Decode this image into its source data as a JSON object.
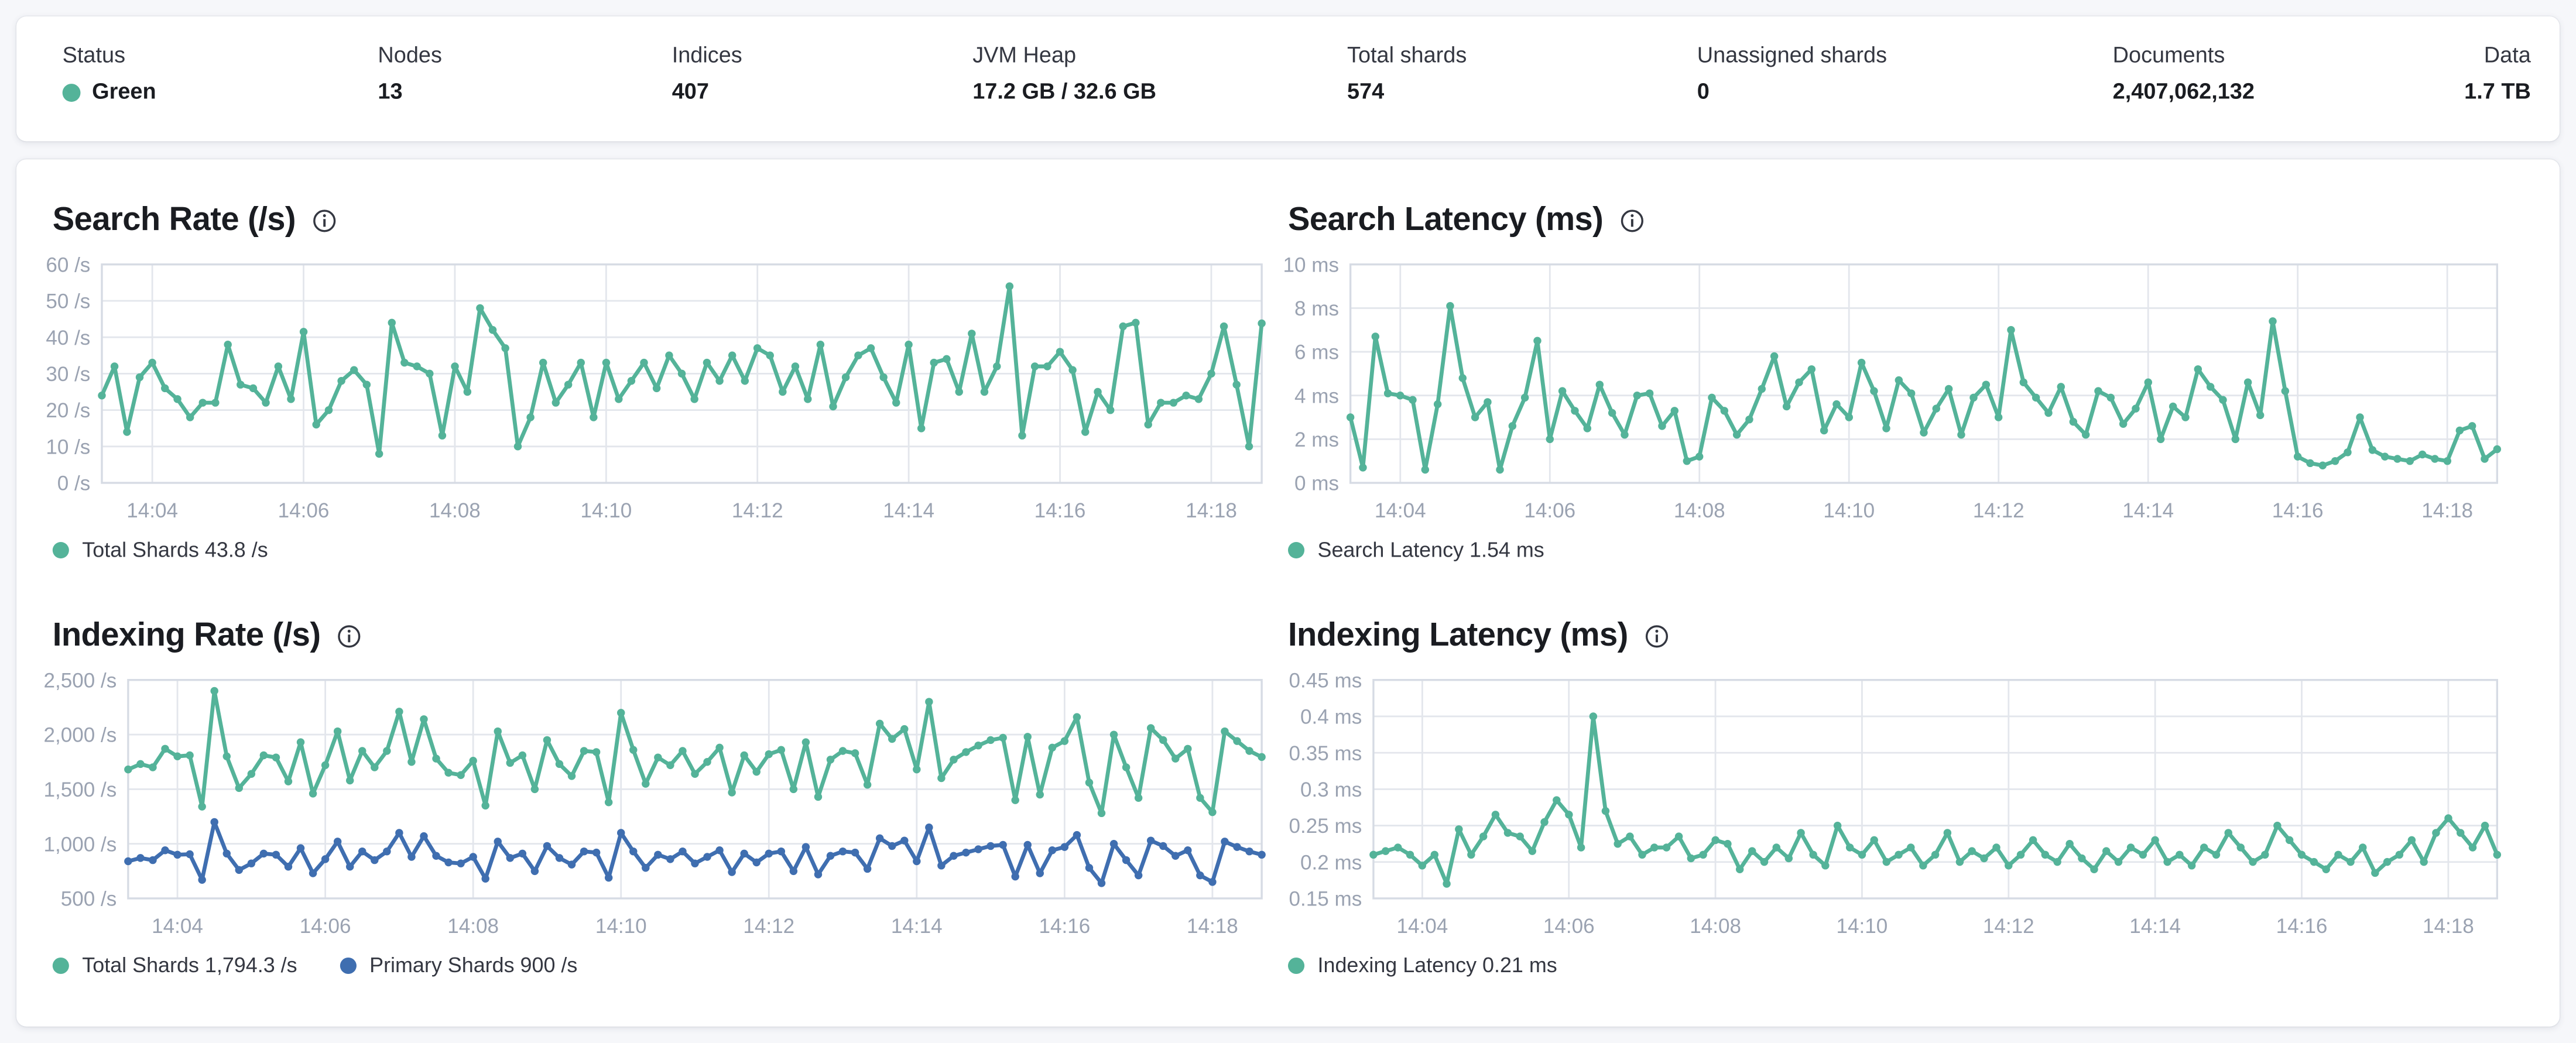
{
  "colors": {
    "health_green": "#54b399",
    "teal_series": "#54b399",
    "blue_series": "#3f6eb0",
    "grid": "#e3e6ec",
    "plot_border": "#d6dbe4",
    "axis_text": "#9aa2b1"
  },
  "stats": [
    {
      "label": "Status",
      "value": "Green"
    },
    {
      "label": "Nodes",
      "value": "13"
    },
    {
      "label": "Indices",
      "value": "407"
    },
    {
      "label": "JVM Heap",
      "value": "17.2 GB / 32.6 GB"
    },
    {
      "label": "Total shards",
      "value": "574"
    },
    {
      "label": "Unassigned shards",
      "value": "0"
    },
    {
      "label": "Documents",
      "value": "2,407,062,132"
    },
    {
      "label": "Data",
      "value": "1.7 TB"
    }
  ],
  "chart_data": [
    {
      "type": "line",
      "title": "Search Rate (/s)",
      "ylim": [
        0,
        60
      ],
      "label_width": 30,
      "y_ticks": [
        {
          "v": 0,
          "label": "0 /s"
        },
        {
          "v": 10,
          "label": "10 /s"
        },
        {
          "v": 20,
          "label": "20 /s"
        },
        {
          "v": 30,
          "label": "30 /s"
        },
        {
          "v": 40,
          "label": "40 /s"
        },
        {
          "v": 50,
          "label": "50 /s"
        },
        {
          "v": 60,
          "label": "60 /s"
        }
      ],
      "x_tick_indices": [
        4,
        16,
        28,
        40,
        52,
        64,
        76,
        88
      ],
      "x_tick_labels": [
        "14:04",
        "14:06",
        "14:08",
        "14:10",
        "14:12",
        "14:14",
        "14:16",
        "14:18"
      ],
      "series": [
        {
          "name": "Total Shards",
          "color": "#54b399",
          "values": [
            24,
            32,
            14,
            29,
            33,
            26,
            23,
            18,
            22,
            22,
            38,
            27,
            26,
            22,
            32,
            23,
            41.5,
            16,
            20,
            28,
            31,
            27,
            8,
            44,
            33,
            32,
            30,
            13,
            32,
            25,
            48,
            42,
            37,
            10,
            18,
            33,
            22,
            27,
            33,
            18,
            33,
            23,
            28,
            33,
            26,
            35,
            30,
            23,
            33,
            28,
            35,
            28,
            37,
            35,
            25,
            32,
            23,
            38,
            21,
            29,
            35,
            37,
            29,
            22,
            38,
            15,
            33,
            34,
            25,
            41,
            25,
            32,
            54,
            13,
            32,
            32,
            36,
            31,
            14,
            25,
            20,
            43,
            44,
            16,
            22,
            22,
            24,
            23,
            30,
            43,
            27,
            10,
            43.8
          ]
        }
      ],
      "legend": [
        {
          "label": "Total Shards 43.8 /s",
          "color": "#54b399"
        }
      ]
    },
    {
      "type": "line",
      "title": "Search Latency (ms)",
      "ylim": [
        0,
        10
      ],
      "label_width": 38,
      "y_ticks": [
        {
          "v": 0,
          "label": "0 ms"
        },
        {
          "v": 2,
          "label": "2 ms"
        },
        {
          "v": 4,
          "label": "4 ms"
        },
        {
          "v": 6,
          "label": "6 ms"
        },
        {
          "v": 8,
          "label": "8 ms"
        },
        {
          "v": 10,
          "label": "10 ms"
        }
      ],
      "x_tick_indices": [
        4,
        16,
        28,
        40,
        52,
        64,
        76,
        88
      ],
      "x_tick_labels": [
        "14:04",
        "14:06",
        "14:08",
        "14:10",
        "14:12",
        "14:14",
        "14:16",
        "14:18"
      ],
      "series": [
        {
          "name": "Search Latency",
          "color": "#54b399",
          "values": [
            3.0,
            0.7,
            6.7,
            4.1,
            4.0,
            3.8,
            0.6,
            3.6,
            8.1,
            4.8,
            3.0,
            3.7,
            0.6,
            2.6,
            3.9,
            6.5,
            2.0,
            4.2,
            3.3,
            2.5,
            4.5,
            3.2,
            2.2,
            4.0,
            4.1,
            2.6,
            3.3,
            1.0,
            1.2,
            3.9,
            3.3,
            2.2,
            2.9,
            4.3,
            5.8,
            3.5,
            4.6,
            5.2,
            2.4,
            3.6,
            3.0,
            5.5,
            4.2,
            2.5,
            4.7,
            4.1,
            2.3,
            3.4,
            4.3,
            2.2,
            3.9,
            4.5,
            3.0,
            7.0,
            4.6,
            3.9,
            3.2,
            4.4,
            2.8,
            2.2,
            4.2,
            3.9,
            2.7,
            3.4,
            4.6,
            2.0,
            3.5,
            3.0,
            5.2,
            4.4,
            3.8,
            2.0,
            4.6,
            3.1,
            7.4,
            4.2,
            1.2,
            0.9,
            0.8,
            1.0,
            1.4,
            3.0,
            1.5,
            1.2,
            1.1,
            1.0,
            1.3,
            1.1,
            1.0,
            2.4,
            2.6,
            1.1,
            1.54
          ]
        }
      ],
      "legend": [
        {
          "label": "Search Latency 1.54 ms",
          "color": "#54b399"
        }
      ]
    },
    {
      "type": "line",
      "title": "Indexing Rate (/s)",
      "ylim": [
        500,
        2500
      ],
      "label_width": 46,
      "y_ticks": [
        {
          "v": 500,
          "label": "500 /s"
        },
        {
          "v": 1000,
          "label": "1,000 /s"
        },
        {
          "v": 1500,
          "label": "1,500 /s"
        },
        {
          "v": 2000,
          "label": "2,000 /s"
        },
        {
          "v": 2500,
          "label": "2,500 /s"
        }
      ],
      "x_tick_indices": [
        4,
        16,
        28,
        40,
        52,
        64,
        76,
        88
      ],
      "x_tick_labels": [
        "14:04",
        "14:06",
        "14:08",
        "14:10",
        "14:12",
        "14:14",
        "14:16",
        "14:18"
      ],
      "series": [
        {
          "name": "Total Shards",
          "color": "#54b399",
          "values": [
            1680,
            1730,
            1700,
            1870,
            1800,
            1810,
            1340,
            2400,
            1800,
            1510,
            1640,
            1810,
            1790,
            1570,
            1930,
            1460,
            1720,
            2030,
            1580,
            1850,
            1700,
            1850,
            2210,
            1750,
            2140,
            1780,
            1650,
            1630,
            1760,
            1350,
            2030,
            1740,
            1810,
            1500,
            1950,
            1730,
            1620,
            1850,
            1840,
            1380,
            2200,
            1860,
            1550,
            1790,
            1720,
            1850,
            1640,
            1750,
            1880,
            1470,
            1810,
            1660,
            1820,
            1860,
            1500,
            1930,
            1430,
            1770,
            1850,
            1830,
            1540,
            2100,
            1960,
            2050,
            1680,
            2300,
            1600,
            1770,
            1840,
            1900,
            1950,
            1970,
            1400,
            1980,
            1450,
            1880,
            1940,
            2160,
            1560,
            1280,
            2000,
            1700,
            1420,
            2060,
            1950,
            1780,
            1870,
            1420,
            1290,
            2030,
            1940,
            1850,
            1794.3
          ]
        },
        {
          "name": "Primary Shards",
          "color": "#3f6eb0",
          "values": [
            840,
            870,
            850,
            940,
            900,
            905,
            670,
            1200,
            910,
            760,
            820,
            910,
            900,
            790,
            960,
            730,
            860,
            1020,
            790,
            930,
            850,
            930,
            1100,
            880,
            1070,
            890,
            830,
            820,
            880,
            680,
            1020,
            870,
            910,
            750,
            980,
            870,
            810,
            930,
            920,
            690,
            1100,
            930,
            780,
            900,
            860,
            930,
            820,
            880,
            940,
            740,
            910,
            830,
            910,
            930,
            750,
            970,
            720,
            890,
            930,
            920,
            770,
            1050,
            980,
            1030,
            840,
            1150,
            800,
            890,
            920,
            950,
            980,
            990,
            700,
            990,
            730,
            940,
            970,
            1080,
            780,
            640,
            1000,
            850,
            710,
            1030,
            980,
            890,
            940,
            710,
            650,
            1020,
            970,
            930,
            900
          ]
        }
      ],
      "legend": [
        {
          "label": "Total Shards 1,794.3 /s",
          "color": "#54b399"
        },
        {
          "label": "Primary Shards 900 /s",
          "color": "#3f6eb0"
        }
      ]
    },
    {
      "type": "line",
      "title": "Indexing Latency (ms)",
      "ylim": [
        0.15,
        0.45
      ],
      "label_width": 52,
      "y_ticks": [
        {
          "v": 0.15,
          "label": "0.15 ms"
        },
        {
          "v": 0.2,
          "label": "0.2 ms"
        },
        {
          "v": 0.25,
          "label": "0.25 ms"
        },
        {
          "v": 0.3,
          "label": "0.3 ms"
        },
        {
          "v": 0.35,
          "label": "0.35 ms"
        },
        {
          "v": 0.4,
          "label": "0.4 ms"
        },
        {
          "v": 0.45,
          "label": "0.45 ms"
        }
      ],
      "x_tick_indices": [
        4,
        16,
        28,
        40,
        52,
        64,
        76,
        88
      ],
      "x_tick_labels": [
        "14:04",
        "14:06",
        "14:08",
        "14:10",
        "14:12",
        "14:14",
        "14:16",
        "14:18"
      ],
      "series": [
        {
          "name": "Indexing Latency",
          "color": "#54b399",
          "values": [
            0.21,
            0.215,
            0.22,
            0.21,
            0.195,
            0.21,
            0.17,
            0.245,
            0.21,
            0.235,
            0.265,
            0.24,
            0.235,
            0.215,
            0.255,
            0.285,
            0.265,
            0.22,
            0.4,
            0.27,
            0.225,
            0.235,
            0.21,
            0.22,
            0.22,
            0.235,
            0.205,
            0.21,
            0.23,
            0.225,
            0.19,
            0.215,
            0.2,
            0.22,
            0.205,
            0.24,
            0.21,
            0.195,
            0.25,
            0.22,
            0.21,
            0.23,
            0.2,
            0.21,
            0.22,
            0.195,
            0.21,
            0.24,
            0.2,
            0.215,
            0.205,
            0.22,
            0.195,
            0.21,
            0.23,
            0.21,
            0.2,
            0.225,
            0.205,
            0.19,
            0.215,
            0.2,
            0.22,
            0.21,
            0.23,
            0.2,
            0.21,
            0.195,
            0.22,
            0.21,
            0.24,
            0.22,
            0.2,
            0.21,
            0.25,
            0.23,
            0.21,
            0.2,
            0.19,
            0.21,
            0.2,
            0.22,
            0.185,
            0.2,
            0.21,
            0.23,
            0.2,
            0.24,
            0.26,
            0.24,
            0.22,
            0.25,
            0.21
          ]
        }
      ],
      "legend": [
        {
          "label": "Indexing Latency 0.21 ms",
          "color": "#54b399"
        }
      ]
    }
  ]
}
